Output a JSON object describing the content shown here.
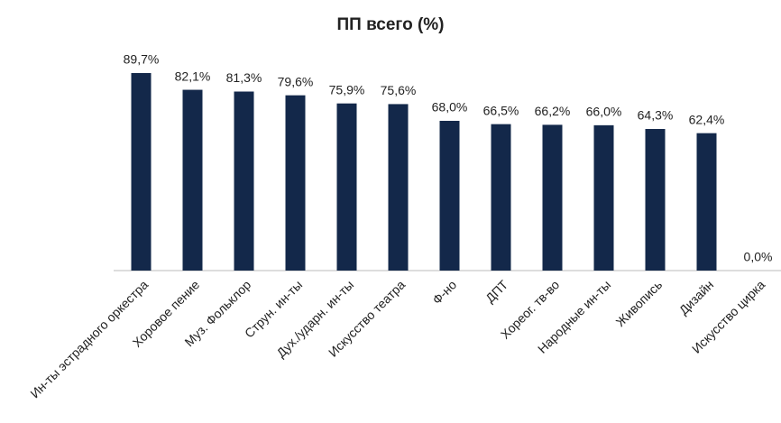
{
  "chart_data": {
    "type": "bar",
    "title": "ПП всего (%)",
    "categories": [
      "Ин-ты эстрадного оркестра",
      "Хоровое пение",
      "Муз. Фольклор",
      "Струн. ин-ты",
      "Дух./ударн. ин-ты",
      "Искусство театра",
      "Ф-но",
      "ДПТ",
      "Хореог. тв-во",
      "Народные ин-ты",
      "Живопись",
      "Дизайн",
      "Искусство цирка"
    ],
    "values": [
      89.7,
      82.1,
      81.3,
      79.6,
      75.9,
      75.6,
      68.0,
      66.5,
      66.2,
      66.0,
      64.3,
      62.4,
      0.0
    ],
    "value_labels": [
      "89,7%",
      "82,1%",
      "81,3%",
      "79,6%",
      "75,9%",
      "75,6%",
      "68,0%",
      "66,5%",
      "66,2%",
      "66,0%",
      "64,3%",
      "62,4%",
      "0,0%"
    ],
    "color": "#13284a"
  }
}
